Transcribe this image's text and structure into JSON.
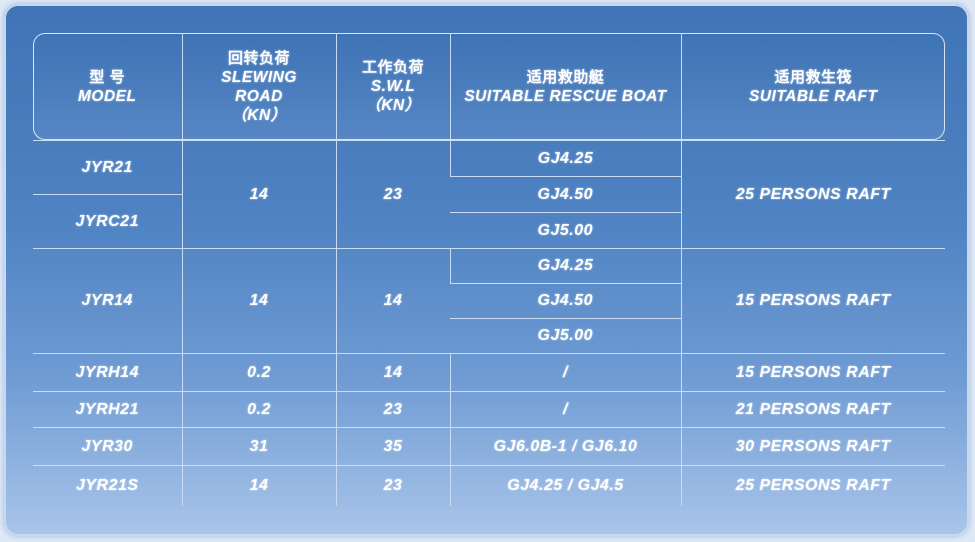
{
  "headers": [
    {
      "zh": "型 号",
      "en": "MODEL",
      "unit": ""
    },
    {
      "zh": "回转负荷",
      "en": "SLEWING ROAD",
      "unit": "（KN）"
    },
    {
      "zh": "工作负荷",
      "en": "S.W.L",
      "unit": "（KN）"
    },
    {
      "zh": "适用救助艇",
      "en": "SUITABLE RESCUE BOAT",
      "unit": ""
    },
    {
      "zh": "适用救生筏",
      "en": "SUITABLE RAFT",
      "unit": ""
    }
  ],
  "groups": [
    {
      "models": [
        "JYR21",
        "JYRC21"
      ],
      "slewing": "14",
      "swl": "23",
      "boats": [
        "GJ4.25",
        "GJ4.50",
        "GJ5.00"
      ],
      "raft": "25 PERSONS RAFT"
    },
    {
      "models": [
        "JYR14"
      ],
      "slewing": "14",
      "swl": "14",
      "boats": [
        "GJ4.25",
        "GJ4.50",
        "GJ5.00"
      ],
      "raft": "15 PERSONS RAFT"
    }
  ],
  "rows": [
    {
      "model": "JYRH14",
      "slewing": "0.2",
      "swl": "14",
      "boat": "/",
      "raft": "15 PERSONS RAFT"
    },
    {
      "model": "JYRH21",
      "slewing": "0.2",
      "swl": "23",
      "boat": "/",
      "raft": "21 PERSONS RAFT"
    },
    {
      "model": "JYR30",
      "slewing": "31",
      "swl": "35",
      "boat": "GJ6.0B-1 / GJ6.10",
      "raft": "30 PERSONS RAFT"
    },
    {
      "model": "JYR21S",
      "slewing": "14",
      "swl": "23",
      "boat": "GJ4.25 / GJ4.5",
      "raft": "25 PERSONS RAFT"
    }
  ]
}
